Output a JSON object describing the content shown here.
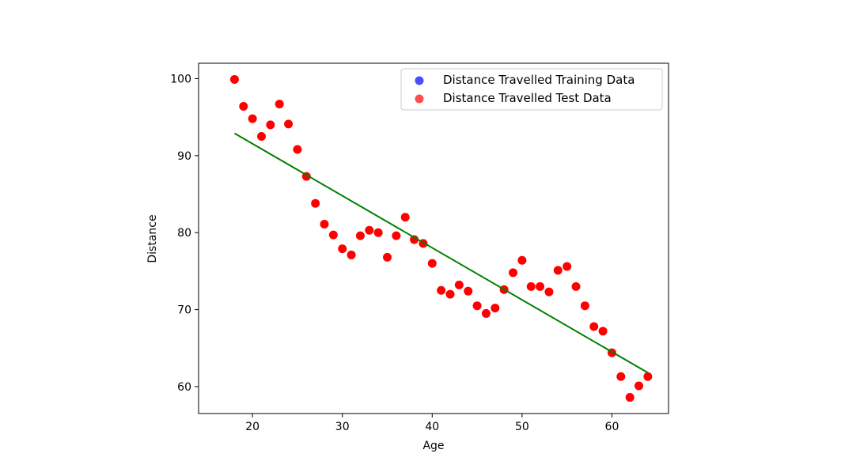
{
  "chart_data": {
    "type": "scatter",
    "xlabel": "Age",
    "ylabel": "Distance",
    "xlim": [
      14,
      66.3
    ],
    "ylim": [
      56.5,
      102
    ],
    "xticks": [
      20,
      30,
      40,
      50,
      60
    ],
    "yticks": [
      60,
      70,
      80,
      90,
      100
    ],
    "grid": false,
    "legend_position": "top-right",
    "series": [
      {
        "name": "Distance Travelled Training Data",
        "color": "#0000ff",
        "marker": "circle",
        "x": [],
        "y": []
      },
      {
        "name": "Distance Travelled Test Data",
        "color": "#ff0000",
        "marker": "circle",
        "x": [
          18,
          19,
          20,
          21,
          22,
          23,
          24,
          25,
          26,
          27,
          28,
          29,
          30,
          31,
          32,
          33,
          34,
          35,
          36,
          37,
          38,
          39,
          40,
          41,
          42,
          43,
          44,
          45,
          46,
          47,
          48,
          49,
          50,
          51,
          52,
          53,
          54,
          55,
          56,
          57,
          58,
          59,
          60,
          61,
          62,
          63,
          64
        ],
        "y": [
          99.9,
          96.4,
          94.8,
          92.5,
          94.0,
          96.7,
          94.1,
          90.8,
          87.3,
          83.8,
          81.1,
          79.7,
          77.9,
          77.1,
          79.6,
          80.3,
          80.0,
          76.8,
          79.6,
          82.0,
          79.1,
          78.6,
          76.0,
          72.5,
          72.0,
          73.2,
          72.4,
          70.5,
          69.5,
          70.2,
          72.6,
          74.8,
          76.4,
          73.0,
          73.0,
          72.3,
          75.1,
          75.6,
          73.0,
          70.5,
          67.8,
          67.2,
          64.4,
          61.3,
          58.6,
          60.1,
          61.3
        ]
      },
      {
        "name": "",
        "type": "line",
        "color": "#008000",
        "x": [
          18,
          64
        ],
        "y": [
          92.9,
          61.8
        ]
      }
    ]
  }
}
